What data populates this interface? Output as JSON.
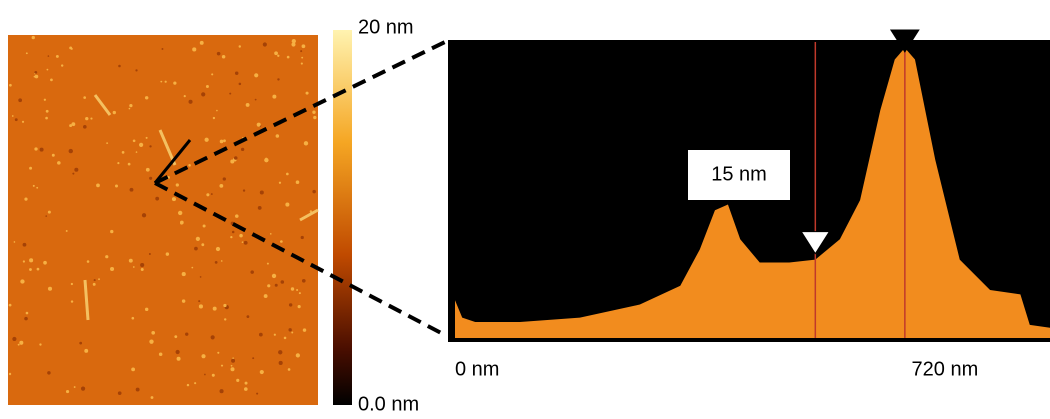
{
  "chart_data": {
    "type": "area",
    "color": "#f28c1e",
    "x": [
      0,
      10,
      28,
      90,
      173,
      256,
      312,
      339,
      360,
      378,
      395,
      422,
      463,
      499,
      533,
      561,
      589,
      609,
      623,
      637,
      665,
      699,
      741,
      783,
      796,
      824
    ],
    "values": [
      2.4,
      1.2,
      0.9,
      0.9,
      1.2,
      2.1,
      3.4,
      5.9,
      8.6,
      9.0,
      6.6,
      5.0,
      5.0,
      5.2,
      6.6,
      9.3,
      15.5,
      19.0,
      19.8,
      19.0,
      12.1,
      5.2,
      3.1,
      2.8,
      0.7,
      0.5
    ],
    "xlim": [
      0,
      824
    ],
    "ylim": [
      0,
      20
    ],
    "xticks": [
      {
        "value": 0,
        "label": "0 nm"
      },
      {
        "value": 720,
        "label": "720 nm"
      }
    ],
    "markers": [
      {
        "x": 499,
        "y": 5.2,
        "color": "#ffffff"
      },
      {
        "x": 623,
        "y": 19.8,
        "color": "#000000"
      }
    ],
    "annotation": "15 nm",
    "colorbar": {
      "max_label": "20 nm",
      "min_label": "0.0 nm"
    }
  }
}
